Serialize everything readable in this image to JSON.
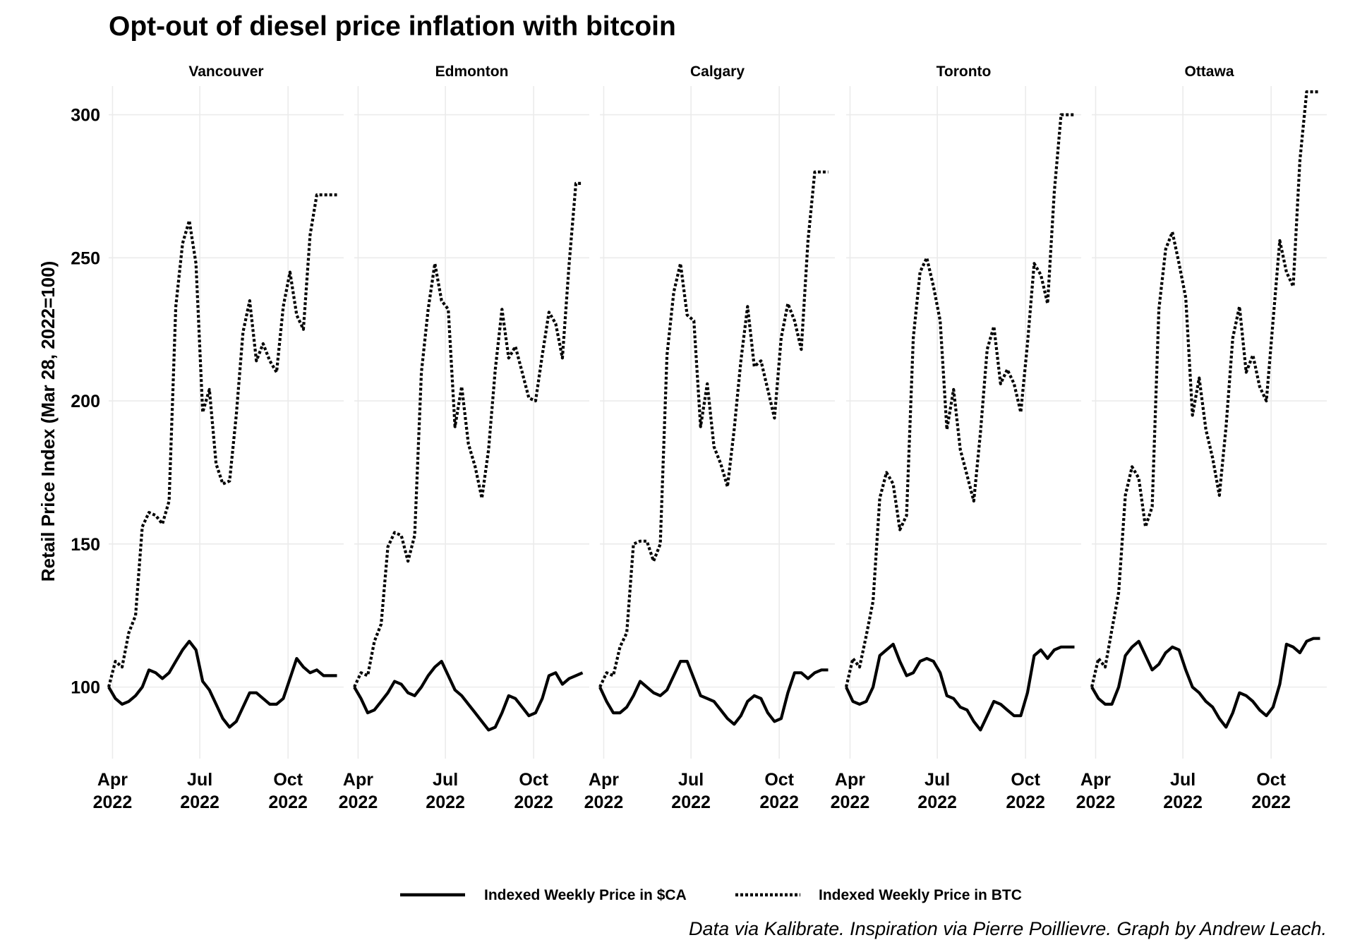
{
  "chart_data": {
    "type": "line",
    "title": "Opt-out of diesel price inflation with bitcoin",
    "ylabel": "Retail Price Index (Mar 28, 2022=100)",
    "xlabel": "",
    "caption": "Data via Kalibrate. Inspiration via Pierre Poillievre. Graph by Andrew Leach.",
    "ylim": [
      75,
      310
    ],
    "yticks": [
      100,
      150,
      200,
      250,
      300
    ],
    "xlim": [
      "2022-03-28",
      "2022-11-28"
    ],
    "xticks": [
      {
        "date": "2022-04-01",
        "label1": "Apr",
        "label2": "2022"
      },
      {
        "date": "2022-07-01",
        "label1": "Jul",
        "label2": "2022"
      },
      {
        "date": "2022-10-01",
        "label1": "Oct",
        "label2": "2022"
      }
    ],
    "grid": true,
    "legend_position": "bottom",
    "series_styles": [
      {
        "name": "Indexed Weekly Price in $CA",
        "dash": "solid",
        "color": "#000000"
      },
      {
        "name": "Indexed Weekly Price in BTC",
        "dash": "dotted",
        "color": "#000000"
      }
    ],
    "dates": [
      "2022-03-28",
      "2022-04-04",
      "2022-04-11",
      "2022-04-18",
      "2022-04-25",
      "2022-05-02",
      "2022-05-09",
      "2022-05-16",
      "2022-05-23",
      "2022-05-30",
      "2022-06-06",
      "2022-06-13",
      "2022-06-20",
      "2022-06-27",
      "2022-07-04",
      "2022-07-11",
      "2022-07-18",
      "2022-07-25",
      "2022-08-01",
      "2022-08-08",
      "2022-08-15",
      "2022-08-22",
      "2022-08-29",
      "2022-09-05",
      "2022-09-12",
      "2022-09-19",
      "2022-09-26",
      "2022-10-03",
      "2022-10-10",
      "2022-10-17",
      "2022-10-24",
      "2022-10-31",
      "2022-11-07",
      "2022-11-14",
      "2022-11-21"
    ],
    "panels": [
      {
        "name": "Vancouver",
        "series": [
          {
            "name": "Indexed Weekly Price in $CA",
            "values": [
              100,
              96,
              94,
              95,
              97,
              100,
              106,
              105,
              103,
              105,
              109,
              113,
              116,
              113,
              102,
              99,
              94,
              89,
              86,
              88,
              93,
              98,
              98,
              96,
              94,
              94,
              96,
              103,
              110,
              107,
              105,
              106,
              104,
              104,
              104
            ]
          },
          {
            "name": "Indexed Weekly Price in BTC",
            "values": [
              100,
              109,
              107,
              119,
              125,
              156,
              161,
              160,
              157,
              165,
              233,
              255,
              263,
              248,
              196,
              204,
              178,
              171,
              172,
              195,
              224,
              235,
              214,
              220,
              214,
              210,
              233,
              245,
              230,
              225,
              258,
              272,
              272,
              272,
              272
            ]
          }
        ]
      },
      {
        "name": "Edmonton",
        "series": [
          {
            "name": "Indexed Weekly Price in $CA",
            "values": [
              100,
              96,
              91,
              92,
              95,
              98,
              102,
              101,
              98,
              97,
              100,
              104,
              107,
              109,
              104,
              99,
              97,
              94,
              91,
              88,
              85,
              86,
              91,
              97,
              96,
              93,
              90,
              91,
              96,
              104,
              105,
              101,
              103,
              104,
              105
            ]
          },
          {
            "name": "Indexed Weekly Price in BTC",
            "values": [
              100,
              105,
              104,
              116,
              122,
              149,
              154,
              153,
              144,
              153,
              210,
              232,
              248,
              235,
              232,
              191,
              205,
              185,
              177,
              166,
              183,
              211,
              232,
              215,
              219,
              210,
              201,
              200,
              216,
              231,
              227,
              215,
              248,
              276,
              276
            ]
          }
        ]
      },
      {
        "name": "Calgary",
        "series": [
          {
            "name": "Indexed Weekly Price in $CA",
            "values": [
              100,
              95,
              91,
              91,
              93,
              97,
              102,
              100,
              98,
              97,
              99,
              104,
              109,
              109,
              103,
              97,
              96,
              95,
              92,
              89,
              87,
              90,
              95,
              97,
              96,
              91,
              88,
              89,
              98,
              105,
              105,
              103,
              105,
              106,
              106
            ]
          },
          {
            "name": "Indexed Weekly Price in BTC",
            "values": [
              100,
              105,
              104,
              114,
              119,
              150,
              151,
              151,
              144,
              150,
              216,
              238,
              248,
              230,
              228,
              191,
              206,
              184,
              178,
              170,
              190,
              214,
              233,
              212,
              214,
              204,
              194,
              222,
              234,
              228,
              218,
              256,
              280,
              280,
              280
            ]
          }
        ]
      },
      {
        "name": "Toronto",
        "series": [
          {
            "name": "Indexed Weekly Price in $CA",
            "values": [
              100,
              95,
              94,
              95,
              100,
              111,
              113,
              115,
              109,
              104,
              105,
              109,
              110,
              109,
              105,
              97,
              96,
              93,
              92,
              88,
              85,
              90,
              95,
              94,
              92,
              90,
              90,
              98,
              111,
              113,
              110,
              113,
              114,
              114,
              114
            ]
          },
          {
            "name": "Indexed Weekly Price in BTC",
            "values": [
              100,
              110,
              107,
              118,
              130,
              166,
              175,
              171,
              155,
              160,
              222,
              245,
              250,
              240,
              228,
              190,
              204,
              183,
              174,
              165,
              189,
              218,
              226,
              206,
              211,
              206,
              196,
              220,
              248,
              244,
              234,
              273,
              300,
              300,
              300
            ]
          }
        ]
      },
      {
        "name": "Ottawa",
        "series": [
          {
            "name": "Indexed Weekly Price in $CA",
            "values": [
              100,
              96,
              94,
              94,
              100,
              111,
              114,
              116,
              111,
              106,
              108,
              112,
              114,
              113,
              106,
              100,
              98,
              95,
              93,
              89,
              86,
              91,
              98,
              97,
              95,
              92,
              90,
              93,
              101,
              115,
              114,
              112,
              116,
              117,
              117
            ]
          },
          {
            "name": "Indexed Weekly Price in BTC",
            "values": [
              100,
              110,
              107,
              120,
              133,
              167,
              177,
              173,
              156,
              163,
              232,
              253,
              259,
              248,
              236,
              195,
              208,
              190,
              180,
              167,
              191,
              222,
              233,
              210,
              216,
              205,
              200,
              228,
              256,
              245,
              240,
              284,
              308,
              308,
              308
            ]
          }
        ]
      }
    ]
  }
}
